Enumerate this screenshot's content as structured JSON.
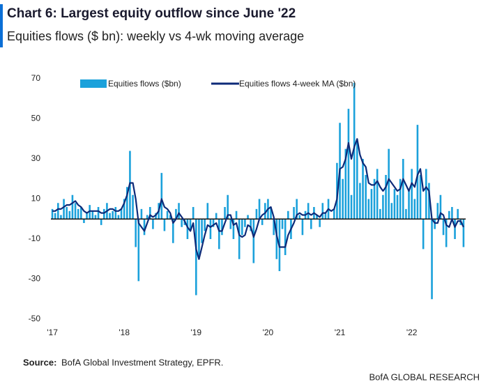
{
  "chart_data": {
    "type": "combo",
    "title": "Chart 6: Largest equity outflow since June '22",
    "subtitle": "Equities flows ($ bn): weekly vs 4-wk moving average",
    "source_label": "Source:",
    "source": "BofA Global Investment Strategy, EPFR.",
    "footer": "BofA GLOBAL RESEARCH",
    "x": [
      2017.0,
      2017.04,
      2017.08,
      2017.12,
      2017.16,
      2017.2,
      2017.24,
      2017.28,
      2017.32,
      2017.36,
      2017.4,
      2017.44,
      2017.48,
      2017.52,
      2017.56,
      2017.6,
      2017.64,
      2017.68,
      2017.72,
      2017.76,
      2017.8,
      2017.84,
      2017.88,
      2017.92,
      2017.96,
      2018.0,
      2018.04,
      2018.08,
      2018.12,
      2018.16,
      2018.2,
      2018.24,
      2018.28,
      2018.32,
      2018.36,
      2018.4,
      2018.44,
      2018.48,
      2018.52,
      2018.56,
      2018.6,
      2018.64,
      2018.68,
      2018.72,
      2018.76,
      2018.8,
      2018.84,
      2018.88,
      2018.92,
      2018.96,
      2019.0,
      2019.04,
      2019.08,
      2019.12,
      2019.16,
      2019.2,
      2019.24,
      2019.28,
      2019.32,
      2019.36,
      2019.4,
      2019.44,
      2019.48,
      2019.52,
      2019.56,
      2019.6,
      2019.64,
      2019.68,
      2019.72,
      2019.76,
      2019.8,
      2019.84,
      2019.88,
      2019.92,
      2019.96,
      2020.0,
      2020.04,
      2020.08,
      2020.12,
      2020.16,
      2020.2,
      2020.24,
      2020.28,
      2020.32,
      2020.36,
      2020.4,
      2020.44,
      2020.48,
      2020.52,
      2020.56,
      2020.6,
      2020.64,
      2020.68,
      2020.72,
      2020.76,
      2020.8,
      2020.84,
      2020.88,
      2020.92,
      2020.96,
      2021.0,
      2021.04,
      2021.08,
      2021.12,
      2021.16,
      2021.2,
      2021.24,
      2021.28,
      2021.32,
      2021.36,
      2021.4,
      2021.44,
      2021.48,
      2021.52,
      2021.56,
      2021.6,
      2021.64,
      2021.68,
      2021.72,
      2021.76,
      2021.8,
      2021.84,
      2021.88,
      2021.92,
      2021.96,
      2022.0,
      2022.04,
      2022.08,
      2022.12,
      2022.16,
      2022.2,
      2022.24,
      2022.28,
      2022.32,
      2022.36,
      2022.4,
      2022.44,
      2022.48,
      2022.52,
      2022.56,
      2022.6,
      2022.64,
      2022.68,
      2022.72
    ],
    "series": [
      {
        "name": "Equities flows ($bn)",
        "type": "bar",
        "color": "#1ba1db",
        "values": [
          5,
          3,
          8,
          2,
          10,
          6,
          4,
          12,
          8,
          5,
          6,
          -2,
          3,
          7,
          4,
          2,
          6,
          -3,
          5,
          8,
          3,
          4,
          6,
          2,
          5,
          10,
          16,
          34,
          12,
          -14,
          -31,
          5,
          -8,
          2,
          6,
          -5,
          3,
          8,
          23,
          -6,
          4,
          2,
          -12,
          5,
          8,
          -4,
          -3,
          -10,
          -6,
          6,
          -38,
          -20,
          -12,
          -6,
          8,
          -10,
          -4,
          3,
          -15,
          -8,
          6,
          12,
          -5,
          -10,
          4,
          -20,
          -8,
          -4,
          2,
          -6,
          -22,
          5,
          10,
          -3,
          8,
          10,
          6,
          -8,
          -20,
          -26,
          -5,
          -18,
          4,
          -10,
          6,
          10,
          2,
          -8,
          4,
          8,
          -5,
          6,
          2,
          -4,
          8,
          3,
          10,
          0,
          5,
          28,
          48,
          20,
          35,
          55,
          12,
          68,
          40,
          18,
          30,
          22,
          10,
          15,
          20,
          25,
          5,
          12,
          22,
          35,
          8,
          15,
          12,
          20,
          30,
          5,
          15,
          25,
          10,
          47,
          22,
          -15,
          25,
          18,
          -40,
          -5,
          8,
          12,
          -8,
          -14,
          4,
          6,
          -10,
          5,
          -3,
          -14
        ]
      },
      {
        "name": "Equities flows 4-week MA ($bn)",
        "type": "line",
        "color": "#0d2a78",
        "values": [
          4,
          4,
          5,
          5,
          6,
          7,
          7,
          8,
          9,
          7,
          6,
          4,
          3,
          4,
          4,
          4,
          4,
          3,
          3,
          4,
          5,
          5,
          4,
          4,
          5,
          8,
          12,
          18,
          18,
          10,
          -2,
          -4,
          -6,
          -2,
          2,
          1,
          2,
          4,
          10,
          6,
          5,
          3,
          -2,
          0,
          3,
          1,
          -1,
          -4,
          -6,
          -2,
          -15,
          -20,
          -14,
          -8,
          -3,
          -4,
          -3,
          -2,
          -6,
          -6,
          -2,
          2,
          2,
          -3,
          -2,
          -8,
          -9,
          -8,
          -3,
          -4,
          -9,
          -5,
          0,
          2,
          3,
          5,
          6,
          1,
          -8,
          -14,
          -14,
          -14,
          -8,
          -5,
          -2,
          2,
          3,
          2,
          2,
          3,
          2,
          3,
          2,
          1,
          3,
          3,
          5,
          4,
          5,
          10,
          25,
          26,
          30,
          38,
          30,
          36,
          40,
          32,
          28,
          26,
          18,
          17,
          17,
          19,
          16,
          14,
          16,
          20,
          18,
          16,
          14,
          15,
          20,
          17,
          14,
          18,
          16,
          22,
          25,
          14,
          16,
          14,
          0,
          -2,
          -2,
          3,
          2,
          -3,
          -4,
          0,
          -4,
          -1,
          -1,
          -4
        ]
      }
    ],
    "xlim": [
      2016.98,
      2022.75
    ],
    "xticks": [
      {
        "value": 2017,
        "label": "'17"
      },
      {
        "value": 2018,
        "label": "'18"
      },
      {
        "value": 2019,
        "label": "'19"
      },
      {
        "value": 2020,
        "label": "'20"
      },
      {
        "value": 2021,
        "label": "'21"
      },
      {
        "value": 2022,
        "label": "'22"
      }
    ],
    "ylim": [
      -50,
      70
    ],
    "yticks": [
      -50,
      -30,
      -10,
      10,
      30,
      50,
      70
    ]
  }
}
